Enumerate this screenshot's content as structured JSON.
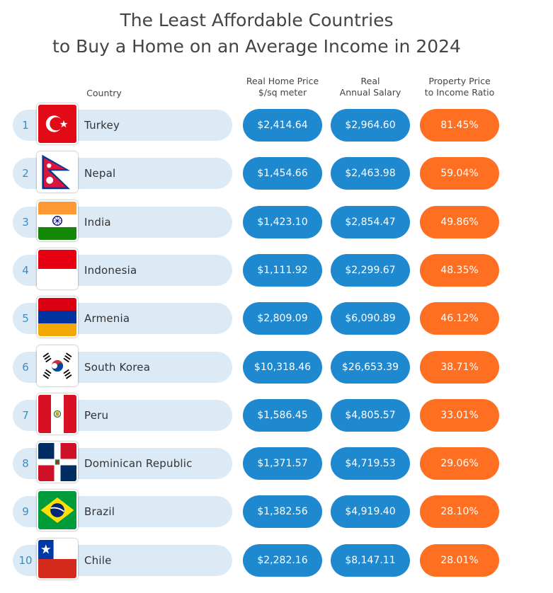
{
  "title": {
    "line1": "The Least Affordable Countries",
    "line2": "to Buy a Home on an Average Income in 2024"
  },
  "columns": {
    "country": "Country",
    "home_price_1": "Real Home Price",
    "home_price_2": "$/sq meter",
    "salary_1": "Real",
    "salary_2": "Annual Salary",
    "ratio_1": "Property Price",
    "ratio_2": "to Income Ratio"
  },
  "colors": {
    "row_pill": "#dbeaf5",
    "rank_text": "#3b8ec2",
    "blue_value": "#1f89d0",
    "orange_value": "#ff6f22"
  },
  "chart_data": {
    "type": "table",
    "columns": [
      "Country",
      "Real Home Price $/sq meter",
      "Real Annual Salary",
      "Property Price to Income Ratio"
    ],
    "rows": [
      {
        "rank": "1",
        "country": "Turkey",
        "flag": "turkey-flag-icon",
        "home_price": "$2,414.64",
        "salary": "$2,964.60",
        "ratio": "81.45%"
      },
      {
        "rank": "2",
        "country": "Nepal",
        "flag": "nepal-flag-icon",
        "home_price": "$1,454.66",
        "salary": "$2,463.98",
        "ratio": "59.04%"
      },
      {
        "rank": "3",
        "country": "India",
        "flag": "india-flag-icon",
        "home_price": "$1,423.10",
        "salary": "$2,854.47",
        "ratio": "49.86%"
      },
      {
        "rank": "4",
        "country": "Indonesia",
        "flag": "indonesia-flag-icon",
        "home_price": "$1,111.92",
        "salary": "$2,299.67",
        "ratio": "48.35%"
      },
      {
        "rank": "5",
        "country": "Armenia",
        "flag": "armenia-flag-icon",
        "home_price": "$2,809.09",
        "salary": "$6,090.89",
        "ratio": "46.12%"
      },
      {
        "rank": "6",
        "country": "South Korea",
        "flag": "south-korea-flag-icon",
        "home_price": "$10,318.46",
        "salary": "$26,653.39",
        "ratio": "38.71%"
      },
      {
        "rank": "7",
        "country": "Peru",
        "flag": "peru-flag-icon",
        "home_price": "$1,586.45",
        "salary": "$4,805.57",
        "ratio": "33.01%"
      },
      {
        "rank": "8",
        "country": "Dominican Republic",
        "flag": "dominican-republic-flag-icon",
        "home_price": "$1,371.57",
        "salary": "$4,719.53",
        "ratio": "29.06%"
      },
      {
        "rank": "9",
        "country": "Brazil",
        "flag": "brazil-flag-icon",
        "home_price": "$1,382.56",
        "salary": "$4,919.40",
        "ratio": "28.10%"
      },
      {
        "rank": "10",
        "country": "Chile",
        "flag": "chile-flag-icon",
        "home_price": "$2,282.16",
        "salary": "$8,147.11",
        "ratio": "28.01%"
      }
    ]
  }
}
